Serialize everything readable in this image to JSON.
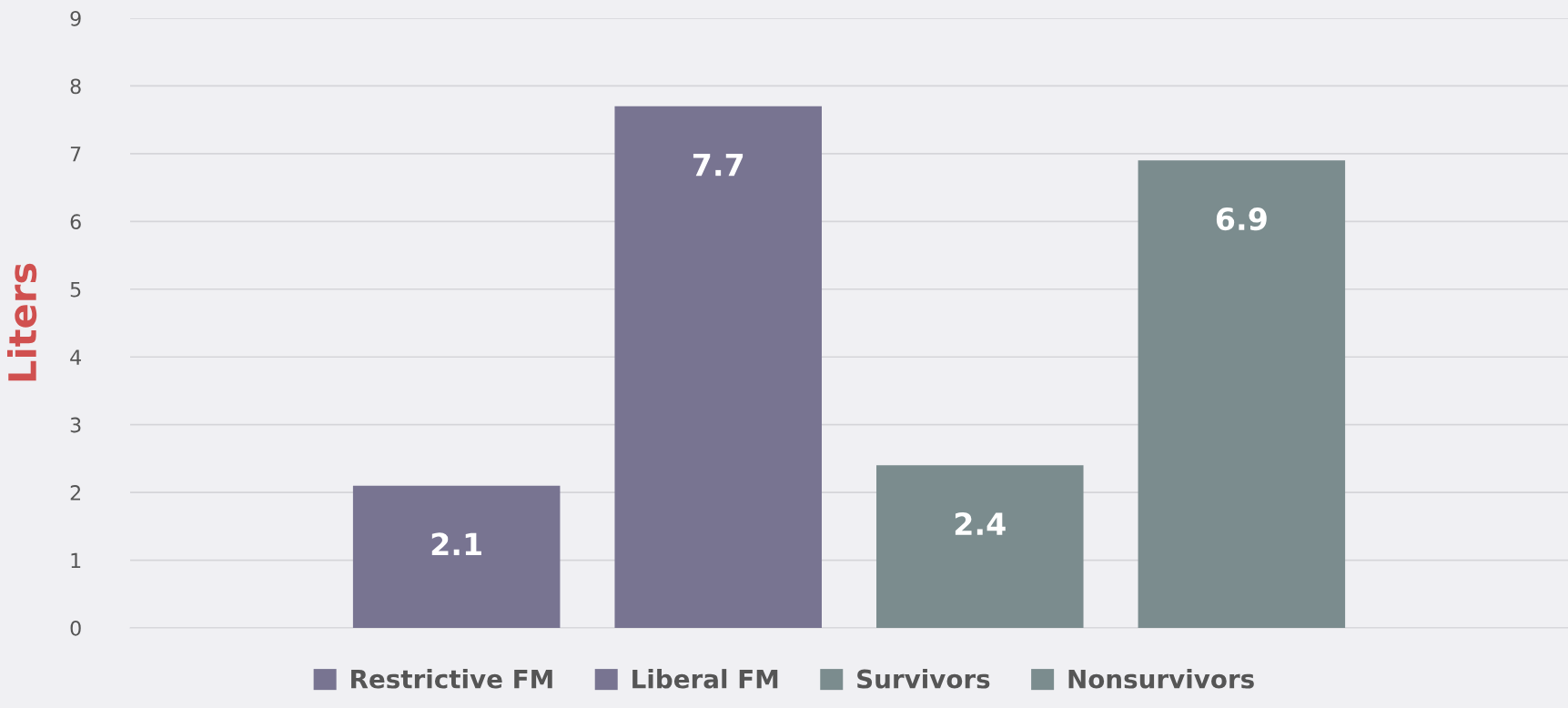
{
  "chart_data": {
    "type": "bar",
    "ylabel": "Liters",
    "categories": [
      null
    ],
    "series": [
      {
        "name": "Restrictive FM",
        "color": "#787491",
        "values": [
          2.1
        ]
      },
      {
        "name": "Liberal FM",
        "color": "#787491",
        "values": [
          7.7
        ]
      },
      {
        "name": "Survivors",
        "color": "#7b8c8e",
        "values": [
          2.4
        ]
      },
      {
        "name": "Nonsurvivors",
        "color": "#7b8c8e",
        "values": [
          6.9
        ]
      }
    ],
    "ylim": [
      0,
      9
    ],
    "yticks": [
      0,
      1,
      2,
      3,
      4,
      5,
      6,
      7,
      8,
      9
    ],
    "grid": "y",
    "legend": "bottom",
    "data_labels": true,
    "tick_labels": "y"
  }
}
